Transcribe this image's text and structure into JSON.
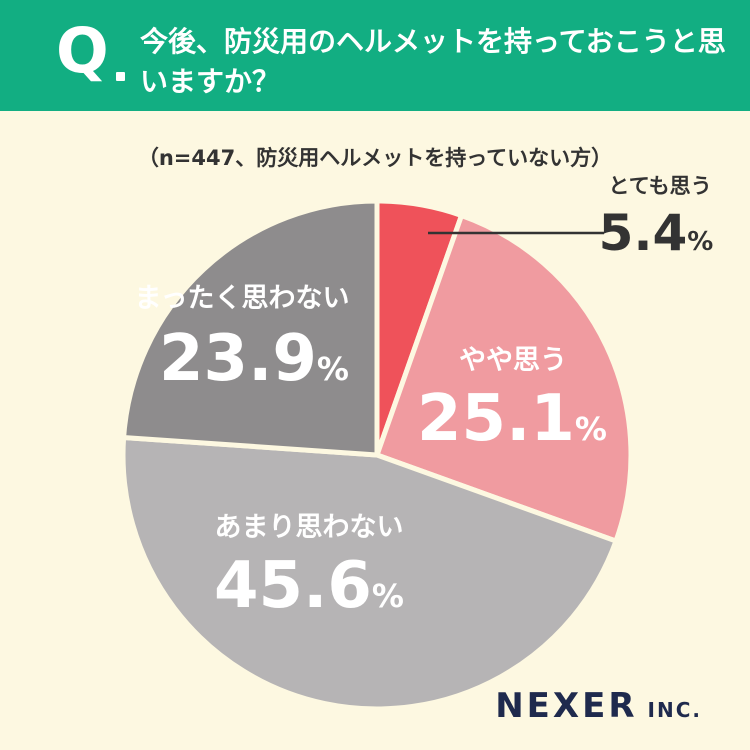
{
  "header": {
    "q_mark": "Q",
    "question": "今後、防災用のヘルメットを持っておこうと思いますか？"
  },
  "subtitle": "（n=447、防災用ヘルメットを持っていない方）",
  "chart_data": {
    "type": "pie",
    "title": "今後、防災用のヘルメットを持っておこうと思いますか？",
    "subtitle": "（n=447、防災用ヘルメットを持っていない方）",
    "unit": "%",
    "slices": [
      {
        "label": "とても思う",
        "value": 5.4,
        "value_text": "5.4",
        "color": "#ef525a"
      },
      {
        "label": "やや思う",
        "value": 25.1,
        "value_text": "25.1",
        "color": "#f09ba0"
      },
      {
        "label": "あまり思わない",
        "value": 45.6,
        "value_text": "45.6",
        "color": "#b6b4b5"
      },
      {
        "label": "まったく思わない",
        "value": 23.9,
        "value_text": "23.9",
        "color": "#8e8c8d"
      }
    ]
  },
  "brand": {
    "name": "NEXER",
    "suffix": "INC.",
    "color": "#1f2a4d"
  }
}
